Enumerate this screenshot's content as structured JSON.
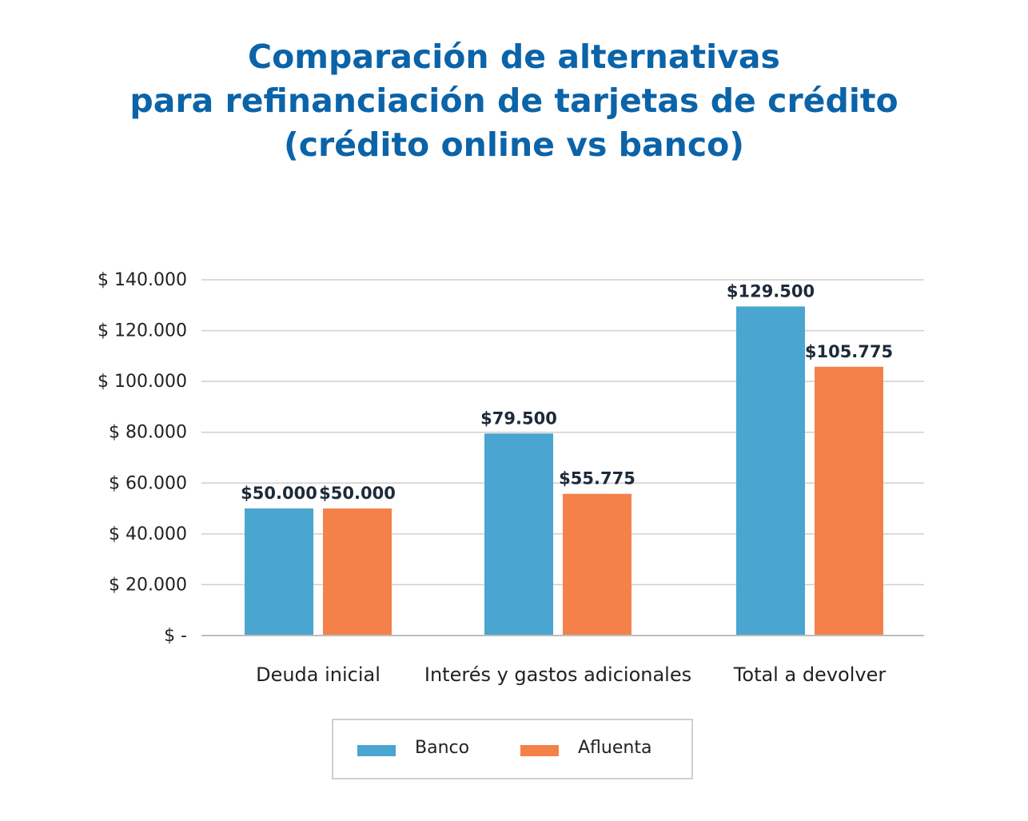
{
  "chart_data": {
    "type": "bar",
    "title": [
      "Comparación de alternativas",
      "para refinanciación de tarjetas de crédito",
      "(crédito online vs banco)"
    ],
    "categories": [
      "Deuda inicial",
      "Interés y gastos adicionales",
      "Total a devolver"
    ],
    "series": [
      {
        "name": "Banco",
        "color": "#4aa5d0",
        "values": [
          50000,
          79500,
          129500
        ],
        "labels": [
          "$50.000",
          "$79.500",
          "$129.500"
        ]
      },
      {
        "name": "Afluenta",
        "color": "#f4814a",
        "values": [
          50000,
          55775,
          105775
        ],
        "labels": [
          "$50.000",
          "$55.775",
          "$105.775"
        ]
      }
    ],
    "y_ticks": [
      0,
      20000,
      40000,
      60000,
      80000,
      100000,
      120000,
      140000
    ],
    "y_tick_labels": [
      "$ -",
      "$ 20.000",
      "$ 40.000",
      "$ 60.000",
      "$ 80.000",
      "$ 100.000",
      "$ 120.000",
      "$ 140.000"
    ],
    "ylim": [
      0,
      140000
    ],
    "grid": true,
    "legend_position": "bottom-center"
  }
}
